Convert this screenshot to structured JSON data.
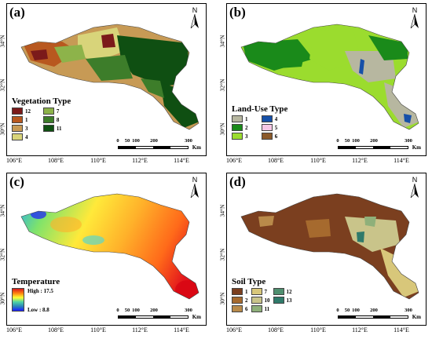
{
  "panels": {
    "a": {
      "label": "(a)",
      "legend_title": "Vegetation Type",
      "legend": [
        {
          "code": "12",
          "color": "#7b1a1a"
        },
        {
          "code": "7",
          "color": "#8db34a"
        },
        {
          "code": "1",
          "color": "#b8581f"
        },
        {
          "code": "8",
          "color": "#3d7d2a"
        },
        {
          "code": "3",
          "color": "#c79a55"
        },
        {
          "code": "11",
          "color": "#0f4f12"
        },
        {
          "code": "4",
          "color": "#d8d47a"
        }
      ]
    },
    "b": {
      "label": "(b)",
      "legend_title": "Land-Use Type",
      "legend": [
        {
          "code": "1",
          "color": "#b7b7a0"
        },
        {
          "code": "4",
          "color": "#1650a8"
        },
        {
          "code": "2",
          "color": "#1a8a1a"
        },
        {
          "code": "5",
          "color": "#f7c7e6"
        },
        {
          "code": "3",
          "color": "#9bdc2e"
        },
        {
          "code": "6",
          "color": "#8b5a2b"
        }
      ]
    },
    "c": {
      "label": "(c)",
      "legend_title": "Temperature",
      "high_label": "High : 17.5",
      "low_label": "Low : 8.8"
    },
    "d": {
      "label": "(d)",
      "legend_title": "Soil Type",
      "legend": [
        {
          "code": "1",
          "color": "#7b3f1f"
        },
        {
          "code": "7",
          "color": "#d8c77a"
        },
        {
          "code": "12",
          "color": "#4f8f6f"
        },
        {
          "code": "2",
          "color": "#a66a2e"
        },
        {
          "code": "10",
          "color": "#c9c48a"
        },
        {
          "code": "13",
          "color": "#2f7a6a"
        },
        {
          "code": "6",
          "color": "#b98a4a"
        },
        {
          "code": "11",
          "color": "#8fb07a"
        }
      ]
    }
  },
  "north_label": "N",
  "scale": {
    "ticks": [
      "0",
      "50",
      "100",
      "200",
      "300"
    ],
    "unit": "Km"
  },
  "lat_labels": [
    "34°N",
    "32°N",
    "30°N"
  ],
  "lon_labels": [
    "106°E",
    "108°E",
    "110°E",
    "112°E",
    "114°E"
  ]
}
